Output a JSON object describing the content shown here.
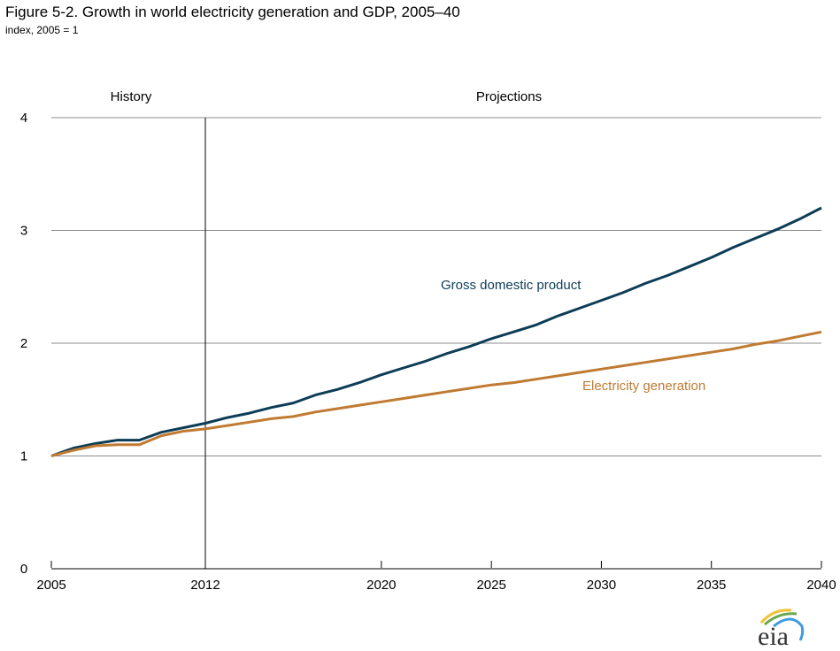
{
  "title": "Figure 5-2. Growth in world electricity generation and GDP, 2005–40",
  "subtitle": "index, 2005 = 1",
  "logo": {
    "text": "eia",
    "icon": "eia-logo"
  },
  "chart_data": {
    "type": "line",
    "title": "Figure 5-2. Growth in world electricity generation and GDP, 2005–40",
    "subtitle": "index, 2005 = 1",
    "xlabel": "",
    "ylabel": "index, 2005 = 1",
    "xlim": [
      2005,
      2040
    ],
    "ylim": [
      0,
      4
    ],
    "x_ticks": [
      2005,
      2012,
      2020,
      2025,
      2030,
      2035,
      2040
    ],
    "y_ticks": [
      0,
      1,
      2,
      3,
      4
    ],
    "grid": true,
    "history_divider": 2012,
    "region_labels": {
      "history": "History",
      "projections": "Projections"
    },
    "x": [
      2005,
      2006,
      2007,
      2008,
      2009,
      2010,
      2011,
      2012,
      2013,
      2014,
      2015,
      2016,
      2017,
      2018,
      2019,
      2020,
      2021,
      2022,
      2023,
      2024,
      2025,
      2026,
      2027,
      2028,
      2029,
      2030,
      2031,
      2032,
      2033,
      2034,
      2035,
      2036,
      2037,
      2038,
      2039,
      2040
    ],
    "series": [
      {
        "name": "Gross domestic product",
        "color": "#0d3d56",
        "values": [
          1.0,
          1.07,
          1.11,
          1.14,
          1.14,
          1.21,
          1.25,
          1.29,
          1.34,
          1.38,
          1.43,
          1.47,
          1.54,
          1.59,
          1.65,
          1.72,
          1.78,
          1.84,
          1.91,
          1.97,
          2.04,
          2.1,
          2.16,
          2.24,
          2.31,
          2.38,
          2.45,
          2.53,
          2.6,
          2.68,
          2.76,
          2.85,
          2.93,
          3.01,
          3.1,
          3.2
        ]
      },
      {
        "name": "Electricity generation",
        "color": "#c07a32",
        "values": [
          1.0,
          1.05,
          1.09,
          1.1,
          1.1,
          1.18,
          1.22,
          1.24,
          1.27,
          1.3,
          1.33,
          1.35,
          1.39,
          1.42,
          1.45,
          1.48,
          1.51,
          1.54,
          1.57,
          1.6,
          1.63,
          1.65,
          1.68,
          1.71,
          1.74,
          1.77,
          1.8,
          1.83,
          1.86,
          1.89,
          1.92,
          1.95,
          1.99,
          2.02,
          2.06,
          2.1
        ]
      }
    ]
  }
}
